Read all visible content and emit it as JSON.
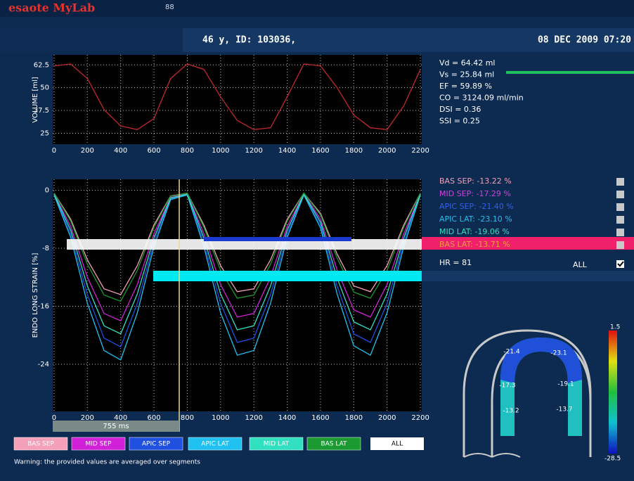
{
  "header": {
    "logo": "esaote MyLab",
    "icon_text": "88",
    "patient": "46 y, ID: 103036,",
    "datetime": "08 DEC 2009 07:20"
  },
  "measurements": [
    "Vd = 64.42 ml",
    "Vs = 25.84 ml",
    "EF = 59.89 %",
    "CO = 3124.09 ml/min",
    "DSI = 0.36",
    "SSI = 0.25"
  ],
  "segment_stats": [
    {
      "text": "BAS SEP: -13.22 %",
      "color": "#f4a0b8"
    },
    {
      "text": "MID SEP: -17.29 %",
      "color": "#d040e0"
    },
    {
      "text": "APIC SEP: -21.40 %",
      "color": "#3060f0"
    },
    {
      "text": "APIC LAT: -23.10 %",
      "color": "#20c0f0"
    },
    {
      "text": "MID LAT: -19.06 %",
      "color": "#30e0c0"
    },
    {
      "text": "BAS LAT: -13.71 %",
      "color": "#f0a040"
    }
  ],
  "heart_rate": "HR = 81",
  "all_label": "ALL",
  "interval": "755 ms",
  "buttons_all": "ALL",
  "warning": "Warning: the provided values are averaged over segments",
  "colorbar": {
    "max": "1.5",
    "min": "-28.5"
  },
  "segment_values": [
    "-21.4",
    "-23.1",
    "-17.3",
    "-19.1",
    "-13.2",
    "-13.7"
  ],
  "chart_data": [
    {
      "type": "line",
      "ylabel": "VOLUME [ml]",
      "x": [
        0,
        100,
        200,
        300,
        400,
        500,
        600,
        700,
        800,
        900,
        1000,
        1100,
        1200,
        1300,
        1400,
        1500,
        1600,
        1700,
        1800,
        1900,
        2000,
        2100,
        2200
      ],
      "xlim": [
        -8,
        2208
      ],
      "xticks": [
        0,
        200,
        400,
        600,
        800,
        1000,
        1200,
        1400,
        1600,
        1800,
        2000,
        2200
      ],
      "ylim": [
        19,
        68
      ],
      "yticks": [
        25,
        37.5,
        50,
        62.5
      ],
      "grid": true,
      "series": [
        {
          "color": "#c0282d",
          "values": [
            62,
            63,
            55,
            38,
            29,
            27,
            33,
            55,
            63,
            60,
            45,
            32,
            27,
            28,
            45,
            63,
            62,
            50,
            35,
            28,
            27,
            40,
            60
          ]
        }
      ]
    },
    {
      "type": "line",
      "ylabel": "ENDO LONG STRAIN [%]",
      "x": [
        0,
        100,
        200,
        300,
        400,
        500,
        600,
        700,
        800,
        900,
        1000,
        1100,
        1200,
        1300,
        1400,
        1500,
        1600,
        1700,
        1800,
        1900,
        2000,
        2100,
        2200
      ],
      "xlim": [
        -8,
        2208
      ],
      "xticks": [
        0,
        200,
        400,
        600,
        800,
        1000,
        1200,
        1400,
        1600,
        1800,
        2000,
        2200
      ],
      "ylim": [
        -30.5,
        1.5
      ],
      "yticks": [
        0,
        -8,
        -16,
        -24
      ],
      "grid": true,
      "series": [
        {
          "name": "BAS SEP",
          "color": "#f4a0b8",
          "values": [
            -0.4,
            -4,
            -9.6,
            -13.6,
            -14.4,
            -10.4,
            -4.8,
            -0.8,
            -0.4,
            -4.8,
            -10.4,
            -14,
            -13.6,
            -9.6,
            -4,
            -0.4,
            -3.2,
            -8.8,
            -13.2,
            -14,
            -10.4,
            -4.8,
            -0.4
          ]
        },
        {
          "name": "MID SEP",
          "color": "#d020d8",
          "values": [
            -0.5,
            -5,
            -12,
            -17,
            -18,
            -13,
            -6,
            -1,
            -0.5,
            -6,
            -13,
            -17.5,
            -17,
            -12,
            -5,
            -0.5,
            -4,
            -11,
            -16.5,
            -17.5,
            -13,
            -6,
            -0.5
          ]
        },
        {
          "name": "APIC SEP",
          "color": "#2050e0",
          "values": [
            -0.6,
            -6,
            -14.4,
            -20.4,
            -21.6,
            -15.6,
            -7.2,
            -1.2,
            -0.6,
            -7.2,
            -15.6,
            -21,
            -20.4,
            -14.4,
            -6,
            -0.6,
            -4.8,
            -13.2,
            -19.8,
            -21,
            -15.6,
            -7.2,
            -0.6
          ]
        },
        {
          "name": "APIC LAT",
          "color": "#20c0f0",
          "values": [
            -0.65,
            -6.5,
            -15.6,
            -22.1,
            -23.4,
            -16.9,
            -7.8,
            -1.3,
            -0.65,
            -7.8,
            -16.9,
            -22.75,
            -22.1,
            -15.6,
            -6.5,
            -0.65,
            -5.2,
            -14.3,
            -21.45,
            -22.75,
            -16.9,
            -7.8,
            -0.65
          ]
        },
        {
          "name": "MID LAT",
          "color": "#30e0c0",
          "values": [
            -0.55,
            -5.5,
            -13.2,
            -18.7,
            -19.8,
            -14.3,
            -6.6,
            -1.1,
            -0.55,
            -6.6,
            -14.3,
            -19.25,
            -18.7,
            -13.2,
            -5.5,
            -0.55,
            -4.4,
            -12.1,
            -18.15,
            -19.25,
            -14.3,
            -6.6,
            -0.55
          ]
        },
        {
          "name": "BAS LAT",
          "color": "#1a9a30",
          "values": [
            -0.4,
            -4.25,
            -10.2,
            -14.45,
            -15.3,
            -11.05,
            -5.1,
            -0.85,
            -0.4,
            -5.1,
            -11.05,
            -14.9,
            -14.45,
            -10.2,
            -4.25,
            -0.4,
            -3.4,
            -9.35,
            -14.05,
            -14.9,
            -11.05,
            -5.1,
            -0.4
          ]
        }
      ]
    }
  ]
}
